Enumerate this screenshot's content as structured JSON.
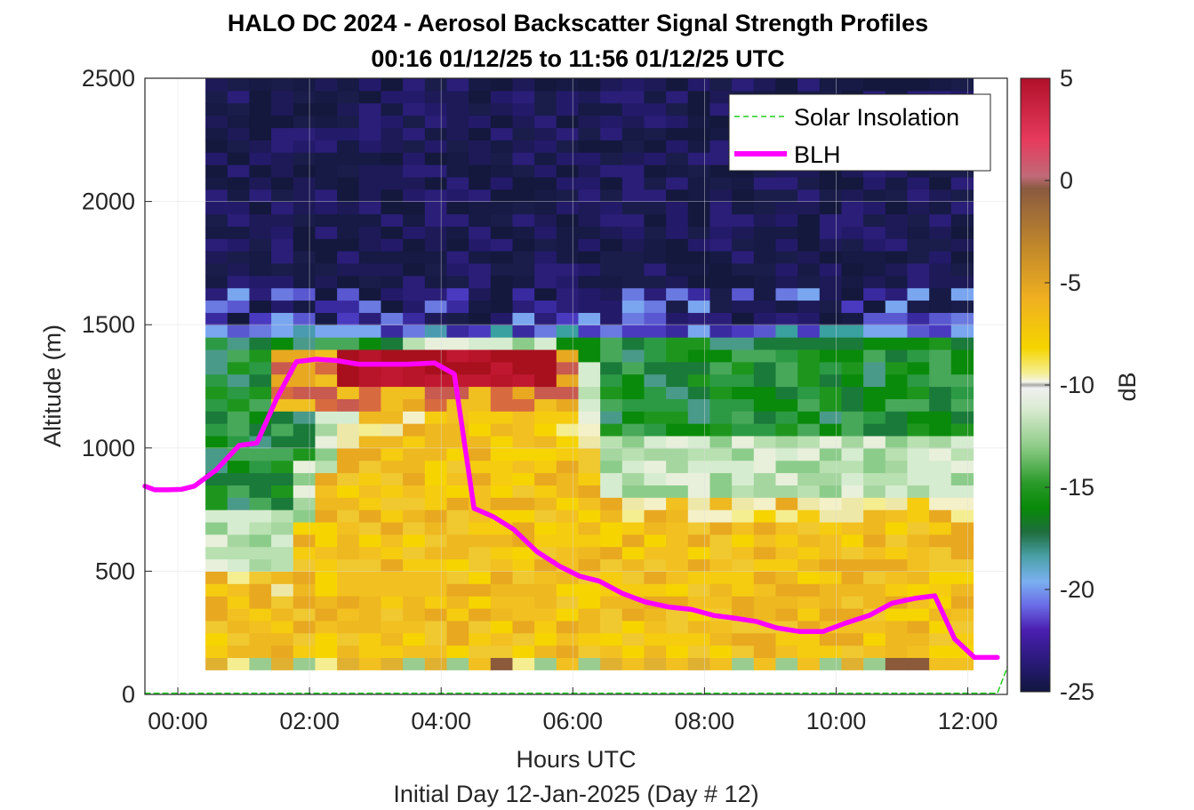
{
  "chart_data": {
    "type": "heatmap",
    "title": "HALO DC 2024 - Aerosol Backscatter Signal Strength Profiles",
    "subtitle": "00:16 01/12/25 to 11:56 01/12/25  UTC",
    "xlabel": "Hours UTC",
    "xlabel2": "Initial Day 12-Jan-2025 (Day # 12)",
    "ylabel": "Altitude (m)",
    "xlim": [
      -0.5,
      12.6
    ],
    "ylim": [
      0,
      2500
    ],
    "x_ticks": [
      0,
      2,
      4,
      6,
      8,
      10,
      12
    ],
    "x_tick_labels": [
      "00:00",
      "02:00",
      "04:00",
      "06:00",
      "08:00",
      "10:00",
      "12:00"
    ],
    "y_ticks": [
      0,
      500,
      1000,
      1500,
      2000,
      2500
    ],
    "y_tick_labels": [
      "0",
      "500",
      "1000",
      "1500",
      "2000",
      "2500"
    ],
    "grid": true,
    "legend_position": "top-right",
    "heatmap": {
      "x_start_hours": 0.42,
      "x_end_hours": 12.08,
      "y_start_m": 100,
      "y_end_m": 2500,
      "columns": 35,
      "layer_top_m": [
        1450,
        1450,
        1450,
        1450,
        1450,
        1450,
        1450,
        1450,
        1450,
        1450,
        1450,
        1450,
        1450,
        1450,
        1450,
        1450,
        1450,
        1450,
        1450,
        1450,
        1450,
        1450,
        1450,
        1450,
        1450,
        1450,
        1450,
        1450,
        1450,
        1450,
        1450,
        1450,
        1450,
        1450,
        1450
      ],
      "bright_top_m": [
        1300,
        1300,
        1300,
        1400,
        1400,
        1450,
        1450,
        1450,
        1450,
        1450,
        1450,
        1450,
        1450,
        1450,
        1450,
        1450,
        1450,
        1450,
        1300,
        1300,
        1300,
        1300,
        1300,
        1300,
        1300,
        1300,
        1300,
        1300,
        1300,
        1300,
        1300,
        1300,
        1300,
        1300,
        1300
      ],
      "aerosol_top_m": [
        500,
        500,
        500,
        500,
        700,
        900,
        1100,
        1150,
        1150,
        1200,
        1250,
        1250,
        1250,
        1250,
        1250,
        1250,
        1150,
        1100,
        800,
        800,
        800,
        800,
        800,
        800,
        800,
        800,
        800,
        800,
        800,
        800,
        800,
        800,
        800,
        800,
        800
      ],
      "colorbar": {
        "label": "dB",
        "range": [
          -25,
          5
        ],
        "ticks": [
          5,
          0,
          -5,
          -10,
          -15,
          -20,
          -25
        ],
        "tick_labels": [
          "5",
          "0",
          "-5",
          "-10",
          "-15",
          "-20",
          "-25"
        ]
      }
    },
    "series": [
      {
        "name": "Solar Insolation",
        "color": "#22cc22",
        "style": "dashed",
        "x": [
          -0.5,
          12.45,
          12.6
        ],
        "y": [
          5,
          5,
          110
        ]
      },
      {
        "name": "BLH",
        "color": "#ff00ff",
        "style": "solid",
        "x": [
          -0.5,
          -0.35,
          -0.15,
          0.05,
          0.25,
          0.58,
          0.93,
          1.2,
          1.5,
          1.8,
          2.1,
          2.4,
          2.75,
          3.1,
          3.5,
          3.9,
          4.2,
          4.5,
          4.8,
          5.1,
          5.45,
          5.8,
          6.1,
          6.4,
          6.75,
          7.1,
          7.45,
          7.8,
          8.15,
          8.45,
          8.8,
          9.1,
          9.45,
          9.8,
          10.15,
          10.5,
          10.85,
          11.2,
          11.5,
          11.8,
          12.1,
          12.45
        ],
        "y": [
          845,
          830,
          830,
          832,
          845,
          910,
          1010,
          1020,
          1200,
          1350,
          1360,
          1355,
          1340,
          1340,
          1340,
          1345,
          1300,
          755,
          720,
          670,
          580,
          520,
          480,
          460,
          410,
          375,
          355,
          345,
          320,
          310,
          295,
          270,
          255,
          255,
          290,
          320,
          370,
          390,
          400,
          225,
          150,
          150
        ]
      }
    ]
  }
}
